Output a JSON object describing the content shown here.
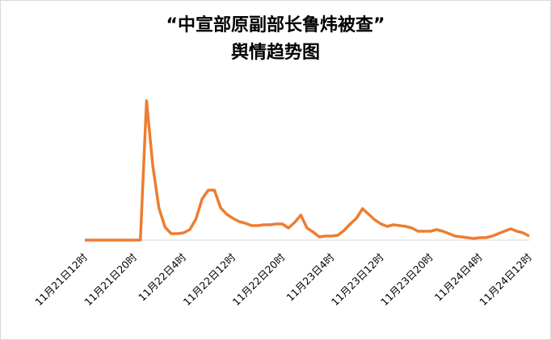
{
  "chart_data": {
    "type": "line",
    "title": [
      "“中宣部原副部长鲁炜被查”",
      "舆情趋势图"
    ],
    "categories": [
      "11月21日12时",
      null,
      null,
      null,
      null,
      null,
      null,
      null,
      "11月21日20时",
      null,
      null,
      null,
      null,
      null,
      null,
      null,
      "11月22日4时",
      null,
      null,
      null,
      null,
      null,
      null,
      null,
      "11月22日12时",
      null,
      null,
      null,
      null,
      null,
      null,
      null,
      "11月22日20时",
      null,
      null,
      null,
      null,
      null,
      null,
      null,
      "11月23日4时",
      null,
      null,
      null,
      null,
      null,
      null,
      null,
      "11月23日12时",
      null,
      null,
      null,
      null,
      null,
      null,
      null,
      "11月23日20时",
      null,
      null,
      null,
      null,
      null,
      null,
      null,
      "11月24日4时",
      null,
      null,
      null,
      null,
      null,
      null,
      null,
      "11月24日12时"
    ],
    "series": [
      {
        "color": "#ed7d31",
        "values": [
          0,
          0,
          0,
          0,
          0,
          0,
          0,
          0,
          0,
          0,
          173,
          93,
          40,
          16,
          8,
          8,
          9,
          13,
          26,
          51,
          62,
          62,
          40,
          32,
          27,
          23,
          21,
          18,
          18,
          19,
          19,
          20,
          20,
          15,
          22,
          31,
          15,
          10,
          4,
          5,
          5,
          6,
          12,
          20,
          27,
          39,
          32,
          25,
          20,
          17,
          19,
          18,
          17,
          15,
          11,
          11,
          11,
          13,
          11,
          8,
          5,
          4,
          3,
          2,
          3,
          3,
          5,
          8,
          11,
          14,
          11,
          9,
          5
        ]
      }
    ],
    "ylim": [
      0,
      180
    ]
  }
}
